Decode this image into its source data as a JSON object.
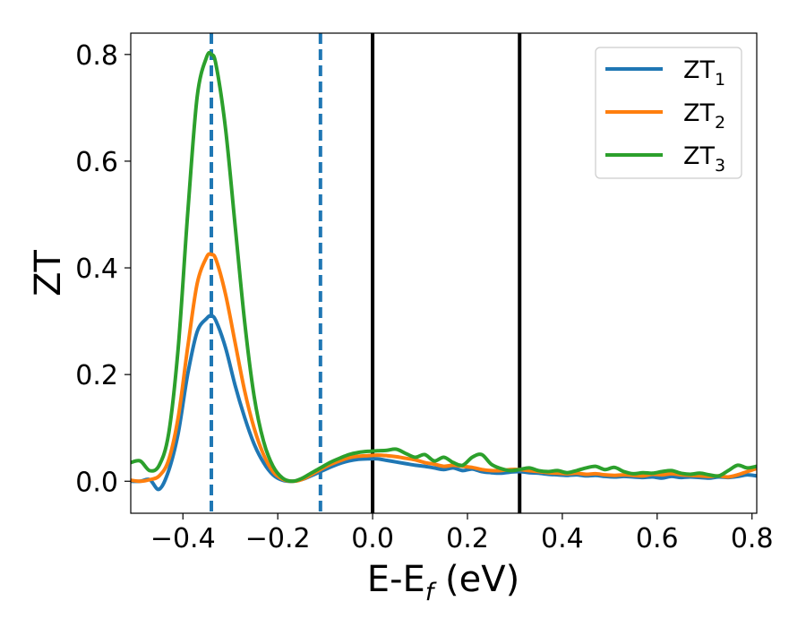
{
  "chart_data": {
    "type": "line",
    "title": "",
    "xlabel": "E-E_f (eV)",
    "xlabel_parts": {
      "main": "E-E",
      "sub": "f",
      "tail": " (eV)"
    },
    "ylabel": "ZT",
    "xlim": [
      -0.51,
      0.81
    ],
    "ylim": [
      -0.06,
      0.84
    ],
    "grid": false,
    "legend_position": "top-right",
    "x_ticks": [
      -0.4,
      -0.2,
      0.0,
      0.2,
      0.4,
      0.6,
      0.8
    ],
    "x_tick_labels": [
      "−0.4",
      "−0.2",
      "0.0",
      "0.2",
      "0.4",
      "0.6",
      "0.8"
    ],
    "y_ticks": [
      0.0,
      0.2,
      0.4,
      0.6,
      0.8
    ],
    "y_tick_labels": [
      "0.0",
      "0.2",
      "0.4",
      "0.6",
      "0.8"
    ],
    "vlines": [
      {
        "x": -0.34,
        "style": "dashed",
        "color": "#1f77b4"
      },
      {
        "x": -0.11,
        "style": "dashed",
        "color": "#1f77b4"
      },
      {
        "x": 0.0,
        "style": "solid",
        "color": "#000000"
      },
      {
        "x": 0.31,
        "style": "solid",
        "color": "#000000"
      }
    ],
    "series": [
      {
        "name": "ZT_1",
        "legend_main": "ZT",
        "legend_sub": "1",
        "color": "#1f77b4",
        "x": [
          -0.51,
          -0.49,
          -0.47,
          -0.45,
          -0.43,
          -0.41,
          -0.39,
          -0.37,
          -0.35,
          -0.34,
          -0.33,
          -0.31,
          -0.29,
          -0.27,
          -0.25,
          -0.23,
          -0.21,
          -0.19,
          -0.17,
          -0.15,
          -0.13,
          -0.11,
          -0.09,
          -0.07,
          -0.05,
          -0.03,
          -0.01,
          0.01,
          0.03,
          0.05,
          0.07,
          0.09,
          0.11,
          0.13,
          0.15,
          0.17,
          0.19,
          0.21,
          0.23,
          0.25,
          0.27,
          0.29,
          0.31,
          0.33,
          0.35,
          0.37,
          0.39,
          0.41,
          0.43,
          0.45,
          0.47,
          0.49,
          0.51,
          0.53,
          0.55,
          0.57,
          0.59,
          0.61,
          0.63,
          0.65,
          0.67,
          0.69,
          0.71,
          0.73,
          0.75,
          0.77,
          0.79,
          0.81
        ],
        "values": [
          0.0,
          0.0,
          0.003,
          -0.015,
          0.02,
          0.09,
          0.2,
          0.28,
          0.305,
          0.31,
          0.3,
          0.25,
          0.18,
          0.12,
          0.07,
          0.035,
          0.012,
          0.002,
          0.0,
          0.003,
          0.01,
          0.018,
          0.026,
          0.033,
          0.038,
          0.041,
          0.042,
          0.042,
          0.039,
          0.036,
          0.033,
          0.03,
          0.028,
          0.025,
          0.022,
          0.025,
          0.02,
          0.023,
          0.018,
          0.016,
          0.015,
          0.017,
          0.018,
          0.016,
          0.015,
          0.013,
          0.012,
          0.011,
          0.012,
          0.01,
          0.011,
          0.009,
          0.008,
          0.009,
          0.008,
          0.007,
          0.008,
          0.006,
          0.009,
          0.007,
          0.008,
          0.007,
          0.006,
          0.008,
          0.007,
          0.009,
          0.012,
          0.01
        ]
      },
      {
        "name": "ZT_2",
        "legend_main": "ZT",
        "legend_sub": "2",
        "color": "#ff7f0e",
        "x": [
          -0.51,
          -0.49,
          -0.47,
          -0.45,
          -0.43,
          -0.41,
          -0.39,
          -0.37,
          -0.35,
          -0.34,
          -0.33,
          -0.31,
          -0.29,
          -0.27,
          -0.25,
          -0.23,
          -0.21,
          -0.19,
          -0.17,
          -0.15,
          -0.13,
          -0.11,
          -0.09,
          -0.07,
          -0.05,
          -0.03,
          -0.01,
          0.01,
          0.03,
          0.05,
          0.07,
          0.09,
          0.11,
          0.13,
          0.15,
          0.17,
          0.19,
          0.21,
          0.23,
          0.25,
          0.27,
          0.29,
          0.31,
          0.33,
          0.35,
          0.37,
          0.39,
          0.41,
          0.43,
          0.45,
          0.47,
          0.49,
          0.51,
          0.53,
          0.55,
          0.57,
          0.59,
          0.61,
          0.63,
          0.65,
          0.67,
          0.69,
          0.71,
          0.73,
          0.75,
          0.77,
          0.79,
          0.81
        ],
        "values": [
          0.002,
          0.0,
          0.003,
          0.01,
          0.04,
          0.12,
          0.25,
          0.37,
          0.42,
          0.425,
          0.415,
          0.35,
          0.26,
          0.17,
          0.1,
          0.05,
          0.018,
          0.004,
          0.0,
          0.003,
          0.012,
          0.022,
          0.031,
          0.038,
          0.044,
          0.047,
          0.048,
          0.049,
          0.048,
          0.046,
          0.043,
          0.04,
          0.035,
          0.032,
          0.028,
          0.03,
          0.028,
          0.026,
          0.022,
          0.02,
          0.02,
          0.022,
          0.022,
          0.02,
          0.018,
          0.016,
          0.015,
          0.014,
          0.015,
          0.013,
          0.014,
          0.012,
          0.011,
          0.012,
          0.011,
          0.01,
          0.013,
          0.012,
          0.014,
          0.012,
          0.011,
          0.01,
          0.009,
          0.01,
          0.008,
          0.012,
          0.018,
          0.024
        ]
      },
      {
        "name": "ZT_3",
        "legend_main": "ZT",
        "legend_sub": "3",
        "color": "#2ca02c",
        "x": [
          -0.51,
          -0.49,
          -0.47,
          -0.45,
          -0.43,
          -0.41,
          -0.39,
          -0.37,
          -0.35,
          -0.34,
          -0.33,
          -0.31,
          -0.29,
          -0.27,
          -0.25,
          -0.23,
          -0.21,
          -0.19,
          -0.17,
          -0.15,
          -0.13,
          -0.11,
          -0.09,
          -0.07,
          -0.05,
          -0.03,
          -0.01,
          0.01,
          0.03,
          0.05,
          0.07,
          0.09,
          0.11,
          0.13,
          0.15,
          0.17,
          0.19,
          0.21,
          0.23,
          0.25,
          0.27,
          0.29,
          0.31,
          0.33,
          0.35,
          0.37,
          0.39,
          0.41,
          0.43,
          0.45,
          0.47,
          0.49,
          0.51,
          0.53,
          0.55,
          0.57,
          0.59,
          0.61,
          0.63,
          0.65,
          0.67,
          0.69,
          0.71,
          0.73,
          0.75,
          0.77,
          0.79,
          0.81
        ],
        "values": [
          0.035,
          0.038,
          0.02,
          0.03,
          0.09,
          0.25,
          0.5,
          0.72,
          0.795,
          0.8,
          0.78,
          0.66,
          0.48,
          0.3,
          0.16,
          0.075,
          0.028,
          0.006,
          0.0,
          0.005,
          0.015,
          0.025,
          0.035,
          0.043,
          0.05,
          0.054,
          0.056,
          0.057,
          0.058,
          0.06,
          0.052,
          0.045,
          0.05,
          0.038,
          0.045,
          0.035,
          0.03,
          0.045,
          0.05,
          0.032,
          0.024,
          0.02,
          0.022,
          0.025,
          0.02,
          0.018,
          0.02,
          0.016,
          0.02,
          0.025,
          0.028,
          0.022,
          0.026,
          0.018,
          0.014,
          0.016,
          0.015,
          0.018,
          0.02,
          0.015,
          0.013,
          0.015,
          0.012,
          0.01,
          0.02,
          0.03,
          0.025,
          0.028
        ]
      }
    ]
  }
}
